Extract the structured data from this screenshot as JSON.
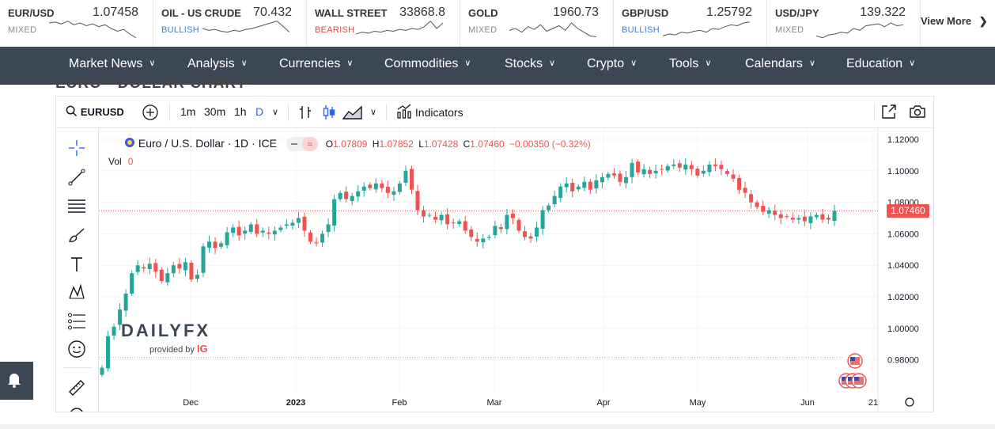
{
  "ticker": [
    {
      "name": "EUR/USD",
      "price": "1.07458",
      "sentiment": "MIXED",
      "sentiment_color": "#888888",
      "spark": [
        6,
        5,
        7,
        4,
        8,
        6,
        9,
        7,
        10,
        8,
        12,
        15,
        13,
        18,
        22
      ]
    },
    {
      "name": "OIL - US CRUDE",
      "price": "70.432",
      "sentiment": "BULLISH",
      "sentiment_color": "#3a7fd6",
      "spark": [
        12,
        14,
        13,
        15,
        16,
        14,
        15,
        13,
        12,
        10,
        8,
        6,
        4,
        10,
        16
      ]
    },
    {
      "name": "WALL STREET",
      "price": "33868.8",
      "sentiment": "BEARISH",
      "sentiment_color": "#e04a4a",
      "spark": [
        18,
        16,
        17,
        15,
        16,
        14,
        15,
        13,
        14,
        12,
        13,
        10,
        4,
        12,
        6
      ]
    },
    {
      "name": "GOLD",
      "price": "1960.73",
      "sentiment": "MIXED",
      "sentiment_color": "#888888",
      "spark": [
        14,
        12,
        16,
        10,
        13,
        8,
        15,
        12,
        9,
        14,
        6,
        12,
        16,
        20,
        21
      ]
    },
    {
      "name": "GBP/USD",
      "price": "1.25792",
      "sentiment": "BULLISH",
      "sentiment_color": "#3a7fd6",
      "spark": [
        20,
        18,
        19,
        16,
        17,
        15,
        14,
        16,
        12,
        13,
        10,
        8,
        9,
        6,
        5
      ]
    },
    {
      "name": "USD/JPY",
      "price": "139.322",
      "sentiment": "MIXED",
      "sentiment_color": "#888888",
      "spark": [
        20,
        22,
        19,
        18,
        16,
        17,
        12,
        14,
        9,
        8,
        7,
        10,
        6,
        9,
        8
      ]
    }
  ],
  "view_more": "View More",
  "nav": [
    "Market News",
    "Analysis",
    "Currencies",
    "Commodities",
    "Stocks",
    "Crypto",
    "Tools",
    "Calendars",
    "Education"
  ],
  "partial_title": "EURO - DOLLAR CHART",
  "toolbar": {
    "symbol": "EURUSD",
    "intervals": [
      "1m",
      "30m",
      "1h",
      "D"
    ],
    "indicators": "Indicators"
  },
  "legend": {
    "title": "Euro / U.S. Dollar · 1D · ICE",
    "open_label": "O",
    "open": "1.07809",
    "high_label": "H",
    "high": "1.07852",
    "low_label": "L",
    "low": "1.07428",
    "close_label": "C",
    "close": "1.07460",
    "change": "−0.00350 (−0.32%)",
    "vol_label": "Vol",
    "vol": "0"
  },
  "watermark": {
    "brand": "DAILYFX",
    "provided": "provided by",
    "ig": "IG"
  },
  "last_price": "1.07460",
  "colors": {
    "up": "#26a69a",
    "down": "#ef5350",
    "nav": "#3c4754",
    "accent": "#2962ff"
  },
  "chart_data": {
    "type": "candlestick",
    "title": "Euro / U.S. Dollar · 1D · ICE",
    "y_ticks": [
      "1.12000",
      "1.10000",
      "1.08000",
      "1.06000",
      "1.04000",
      "1.02000",
      "1.00000",
      "0.98000"
    ],
    "ylim": [
      0.9715,
      1.1245
    ],
    "x_ticks": [
      "Dec",
      "2023",
      "Feb",
      "Mar",
      "Apr",
      "May",
      "Jun",
      "21"
    ],
    "closes": [
      0.975,
      0.995,
      1.001,
      1.012,
      1.022,
      1.035,
      1.04,
      1.038,
      1.041,
      1.036,
      1.03,
      1.035,
      1.04,
      1.038,
      1.042,
      1.031,
      1.034,
      1.052,
      1.055,
      1.051,
      1.054,
      1.061,
      1.064,
      1.059,
      1.062,
      1.066,
      1.06,
      1.062,
      1.06,
      1.062,
      1.064,
      1.066,
      1.067,
      1.07,
      1.062,
      1.055,
      1.054,
      1.06,
      1.066,
      1.082,
      1.086,
      1.082,
      1.084,
      1.087,
      1.09,
      1.089,
      1.092,
      1.089,
      1.086,
      1.087,
      1.092,
      1.1,
      1.088,
      1.075,
      1.071,
      1.072,
      1.069,
      1.072,
      1.066,
      1.067,
      1.068,
      1.062,
      1.058,
      1.055,
      1.057,
      1.058,
      1.065,
      1.063,
      1.072,
      1.07,
      1.062,
      1.058,
      1.057,
      1.064,
      1.075,
      1.078,
      1.084,
      1.09,
      1.092,
      1.087,
      1.09,
      1.093,
      1.088,
      1.094,
      1.096,
      1.098,
      1.097,
      1.093,
      1.096,
      1.105,
      1.099,
      1.101,
      1.098,
      1.1,
      1.101,
      1.103,
      1.104,
      1.102,
      1.104,
      1.101,
      1.097,
      1.1,
      1.104,
      1.103,
      1.101,
      1.098,
      1.095,
      1.088,
      1.086,
      1.08,
      1.077,
      1.074,
      1.075,
      1.072,
      1.07,
      1.071,
      1.069,
      1.07,
      1.068,
      1.071,
      1.072,
      1.069,
      1.069,
      1.0746
    ]
  }
}
